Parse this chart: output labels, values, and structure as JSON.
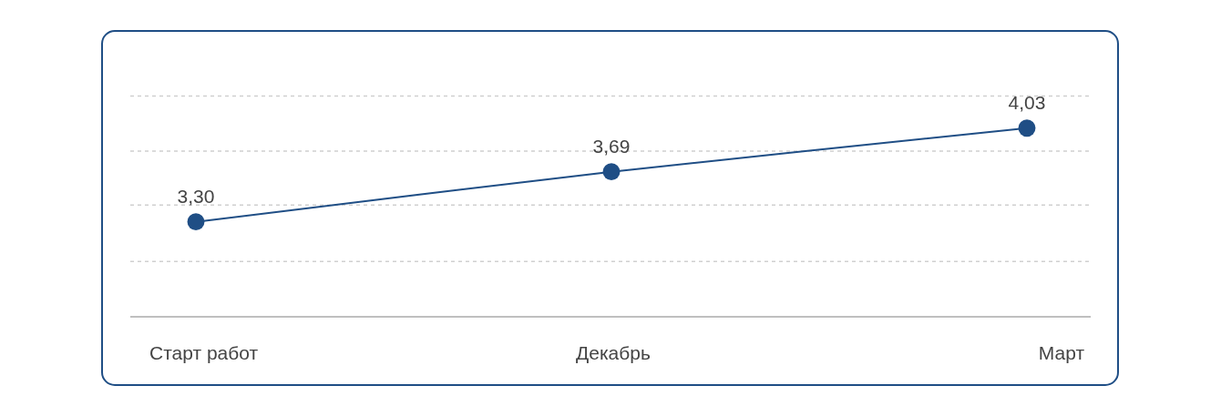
{
  "chart_data": {
    "type": "line",
    "categories": [
      "Старт работ",
      "Декабрь",
      "Март"
    ],
    "series": [
      {
        "color": "#1f4e85",
        "values": [
          3.3,
          3.69,
          4.03
        ],
        "value_labels": [
          "3,30",
          "3,69",
          "4,03"
        ]
      }
    ],
    "ylim": [
      2.56,
      4.78
    ],
    "yticks": [
      {
        "value": 2.99,
        "label": null
      },
      {
        "value": 3.43,
        "label": null
      },
      {
        "value": 3.85,
        "label": null
      },
      {
        "value": 4.28,
        "label": null
      }
    ],
    "tick_labels": "x",
    "grid": "y",
    "marker": "circle",
    "legend": false
  }
}
